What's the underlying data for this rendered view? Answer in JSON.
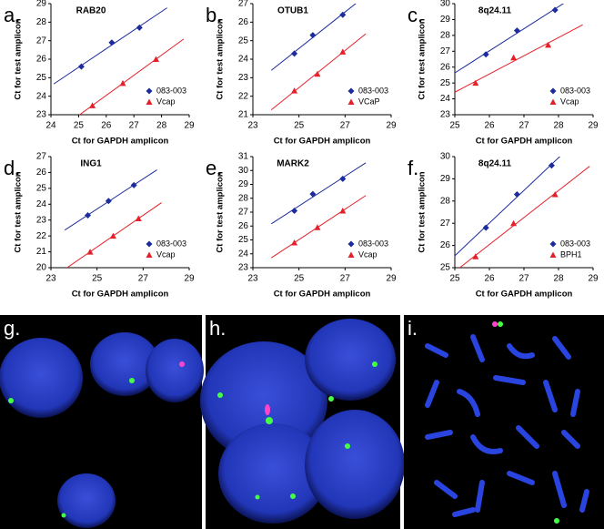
{
  "chart_data": [
    {
      "type": "scatter",
      "label": "a.",
      "title": "RAB20",
      "x_label": "Ct for GAPDH amplicon",
      "y_label": "Ct for test amplicon",
      "xlim": [
        24,
        29
      ],
      "ylim": [
        23,
        29
      ],
      "xticks": [
        24,
        25,
        26,
        27,
        28,
        29
      ],
      "yticks": [
        23,
        24,
        25,
        26,
        27,
        28,
        29
      ],
      "trendline": true,
      "series": [
        {
          "name": "083-003",
          "color": "#1c2c9c",
          "marker": "diamond",
          "x": [
            25.1,
            26.2,
            27.2
          ],
          "values": [
            25.6,
            26.9,
            27.7
          ]
        },
        {
          "name": "Vcap",
          "color": "#e4202a",
          "marker": "triangle",
          "x": [
            25.5,
            26.6,
            27.8
          ],
          "values": [
            23.5,
            24.7,
            26.0
          ]
        }
      ]
    },
    {
      "type": "scatter",
      "label": "b.",
      "title": "OTUB1",
      "x_label": "Ct for GAPDH amplicon",
      "y_label": "Ct for test amplicon",
      "xlim": [
        23,
        29
      ],
      "ylim": [
        21,
        27
      ],
      "xticks": [
        23,
        25,
        27,
        29
      ],
      "yticks": [
        21,
        22,
        23,
        24,
        25,
        26,
        27
      ],
      "trendline": true,
      "series": [
        {
          "name": "083-003",
          "color": "#1c2c9c",
          "marker": "diamond",
          "x": [
            24.8,
            25.6,
            26.9
          ],
          "values": [
            24.3,
            25.3,
            26.4
          ]
        },
        {
          "name": "VCaP",
          "color": "#e4202a",
          "marker": "triangle",
          "x": [
            24.8,
            25.8,
            26.9
          ],
          "values": [
            22.3,
            23.2,
            24.4
          ]
        }
      ]
    },
    {
      "type": "scatter",
      "label": "c.",
      "title": "8q24.11",
      "x_label": "Ct for GAPDH amplicon",
      "y_label": "Ct for test amplicon",
      "xlim": [
        25,
        29
      ],
      "ylim": [
        23,
        30
      ],
      "xticks": [
        25,
        26,
        27,
        28,
        29
      ],
      "yticks": [
        23,
        24,
        25,
        26,
        27,
        28,
        29,
        30
      ],
      "trendline": true,
      "series": [
        {
          "name": "083-003",
          "color": "#1c2c9c",
          "marker": "diamond",
          "x": [
            25.9,
            26.8,
            27.9
          ],
          "values": [
            26.8,
            28.3,
            29.6
          ]
        },
        {
          "name": "Vcap",
          "color": "#e4202a",
          "marker": "triangle",
          "x": [
            25.6,
            26.7,
            27.7
          ],
          "values": [
            25.0,
            26.6,
            27.4
          ]
        }
      ]
    },
    {
      "type": "scatter",
      "label": "d.",
      "title": "ING1",
      "x_label": "Ct for GAPDH amplicon",
      "y_label": "Ct for test amplicon",
      "xlim": [
        23,
        29
      ],
      "ylim": [
        20,
        27
      ],
      "xticks": [
        23,
        25,
        27,
        29
      ],
      "yticks": [
        20,
        21,
        22,
        23,
        24,
        25,
        26,
        27
      ],
      "trendline": true,
      "series": [
        {
          "name": "083-003",
          "color": "#1c2c9c",
          "marker": "diamond",
          "x": [
            24.6,
            25.5,
            26.6
          ],
          "values": [
            23.3,
            24.2,
            25.2
          ]
        },
        {
          "name": "Vcap",
          "color": "#e4202a",
          "marker": "triangle",
          "x": [
            24.7,
            25.7,
            26.8
          ],
          "values": [
            21.0,
            22.0,
            23.1
          ]
        }
      ]
    },
    {
      "type": "scatter",
      "label": "e.",
      "title": "MARK2",
      "x_label": "Ct for GAPDH amplicon",
      "y_label": "Ct for test amplicon",
      "xlim": [
        23,
        29
      ],
      "ylim": [
        23,
        31
      ],
      "xticks": [
        23,
        25,
        27,
        29
      ],
      "yticks": [
        23,
        24,
        25,
        26,
        27,
        28,
        29,
        30,
        31
      ],
      "trendline": true,
      "series": [
        {
          "name": "083-003",
          "color": "#1c2c9c",
          "marker": "diamond",
          "x": [
            24.8,
            25.6,
            26.9
          ],
          "values": [
            27.1,
            28.3,
            29.4
          ]
        },
        {
          "name": "Vcap",
          "color": "#e4202a",
          "marker": "triangle",
          "x": [
            24.8,
            25.8,
            26.9
          ],
          "values": [
            24.8,
            25.9,
            27.1
          ]
        }
      ]
    },
    {
      "type": "scatter",
      "label": "f.",
      "title": "8q24.11",
      "x_label": "Ct for GAPDH amplicon",
      "y_label": "Ct for test amplicon",
      "xlim": [
        25,
        29
      ],
      "ylim": [
        25,
        30
      ],
      "xticks": [
        25,
        26,
        27,
        28,
        29
      ],
      "yticks": [
        25,
        26,
        27,
        28,
        29,
        30
      ],
      "trendline": true,
      "series": [
        {
          "name": "083-003",
          "color": "#1c2c9c",
          "marker": "diamond",
          "x": [
            25.9,
            26.8,
            27.8
          ],
          "values": [
            26.8,
            28.3,
            29.6
          ]
        },
        {
          "name": "BPH1",
          "color": "#e4202a",
          "marker": "triangle",
          "x": [
            25.6,
            26.7,
            27.9
          ],
          "values": [
            25.5,
            27.0,
            28.3
          ]
        }
      ]
    }
  ],
  "images": [
    {
      "label": "g."
    },
    {
      "label": "h."
    },
    {
      "label": "i."
    }
  ]
}
